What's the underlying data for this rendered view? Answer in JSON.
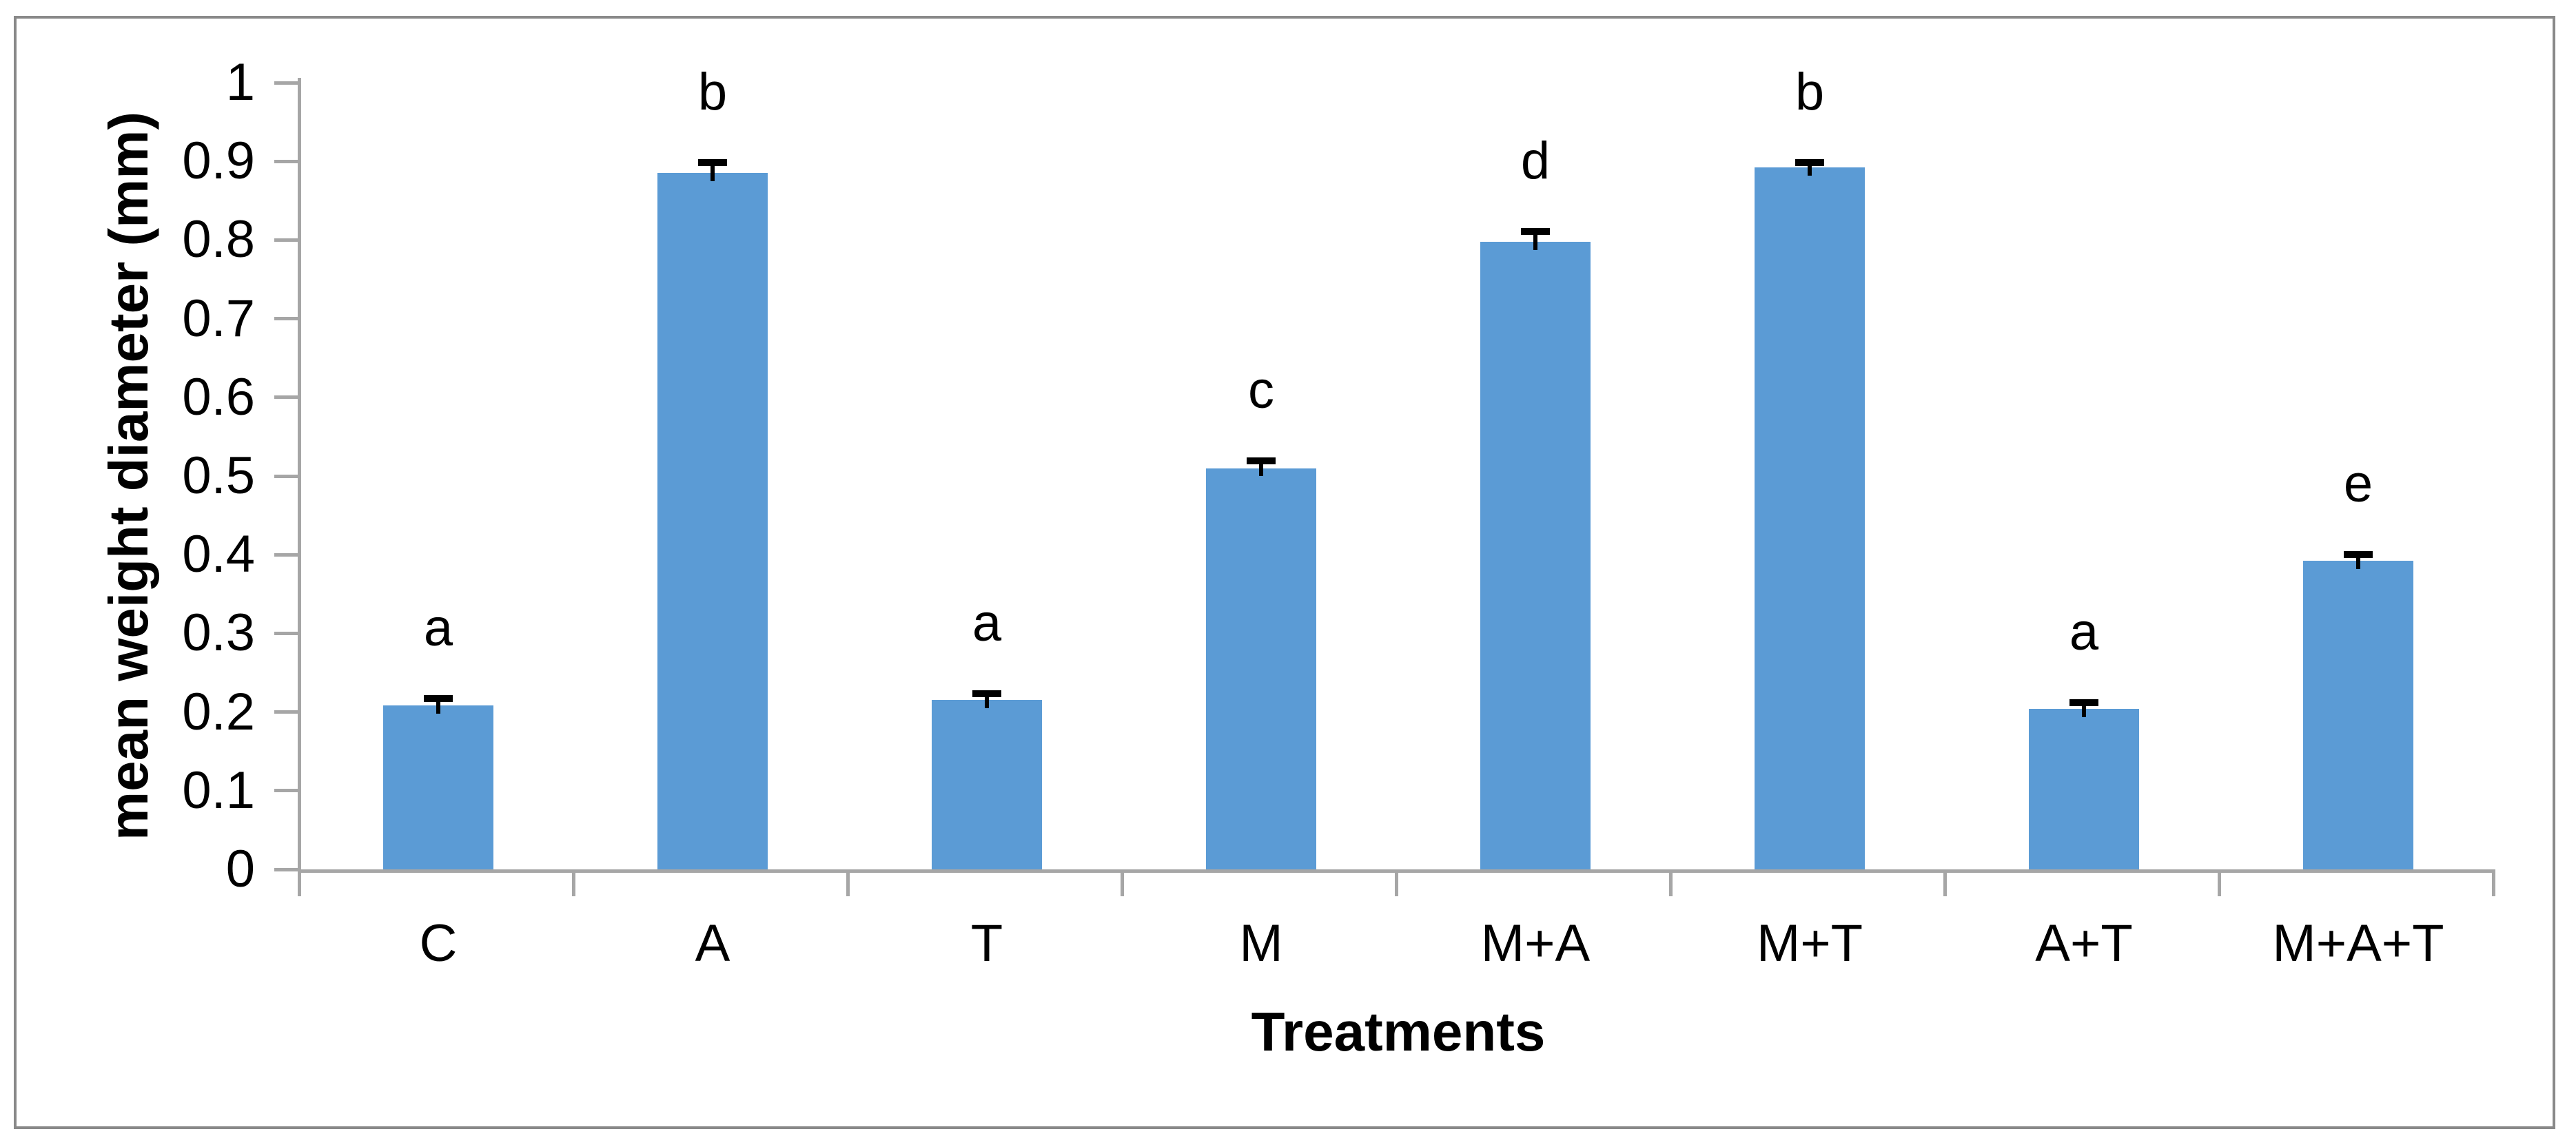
{
  "chart_data": {
    "type": "bar",
    "title": "",
    "xlabel": "Treatments",
    "ylabel": "mean weight diameter (mm)",
    "categories": [
      "C",
      "A",
      "T",
      "M",
      "M+A",
      "M+T",
      "A+T",
      "M+A+T"
    ],
    "values": [
      0.208,
      0.885,
      0.215,
      0.51,
      0.798,
      0.892,
      0.204,
      0.392
    ],
    "error_plus": [
      0.009,
      0.013,
      0.008,
      0.009,
      0.013,
      0.006,
      0.008,
      0.008
    ],
    "sig_letters": [
      "a",
      "b",
      "a",
      "c",
      "d",
      "b",
      "a",
      "e"
    ],
    "ylim": [
      0,
      1
    ],
    "ytick_step": 0.1,
    "ytick_labels": [
      "0",
      "0.1",
      "0.2",
      "0.3",
      "0.4",
      "0.5",
      "0.6",
      "0.7",
      "0.8",
      "0.9",
      "1"
    ],
    "grid": false,
    "legend": null,
    "bar_color": "#5B9BD5",
    "axis_color": "#A6A6A6",
    "frame_color": "#898989",
    "error_color": "#000000",
    "text_color": "#000000"
  }
}
